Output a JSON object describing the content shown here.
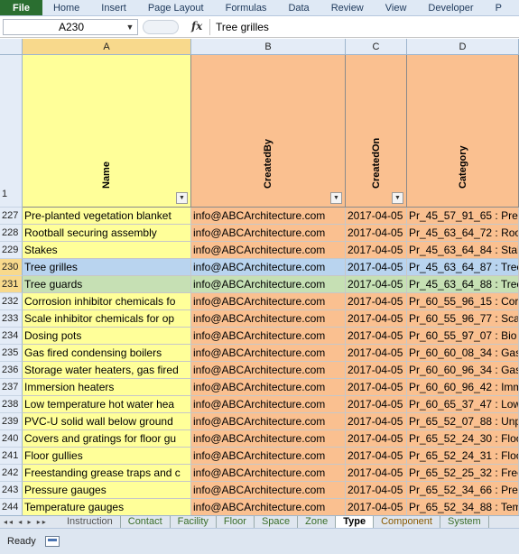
{
  "ribbon": {
    "tabs": [
      "File",
      "Home",
      "Insert",
      "Page Layout",
      "Formulas",
      "Data",
      "Review",
      "View",
      "Developer",
      "P"
    ]
  },
  "formula_bar": {
    "name_box": "A230",
    "fx_label": "fx",
    "value": "Tree grilles"
  },
  "columns": {
    "corner": "",
    "headers": [
      "A",
      "B",
      "C",
      "D"
    ],
    "header_row_number": "1",
    "field_names": [
      "Name",
      "CreatedBy",
      "CreatedOn",
      "Category"
    ]
  },
  "rows": [
    {
      "num": "227",
      "name": "Pre-planted vegetation blanket",
      "created_by": "info@ABCArchitecture.com",
      "created_on": "2017-04-05",
      "category": "Pr_45_57_91_65 : Pre"
    },
    {
      "num": "228",
      "name": "Rootball securing assembly",
      "created_by": "info@ABCArchitecture.com",
      "created_on": "2017-04-05",
      "category": "Pr_45_63_64_72 : Roo"
    },
    {
      "num": "229",
      "name": "Stakes",
      "created_by": "info@ABCArchitecture.com",
      "created_on": "2017-04-05",
      "category": "Pr_45_63_64_84 : Stak"
    },
    {
      "num": "230",
      "name": "Tree grilles",
      "created_by": "info@ABCArchitecture.com",
      "created_on": "2017-04-05",
      "category": "Pr_45_63_64_87 : Tree"
    },
    {
      "num": "231",
      "name": "Tree guards",
      "created_by": "info@ABCArchitecture.com",
      "created_on": "2017-04-05",
      "category": "Pr_45_63_64_88 : Tree"
    },
    {
      "num": "232",
      "name": "Corrosion inhibitor chemicals fo",
      "created_by": "info@ABCArchitecture.com",
      "created_on": "2017-04-05",
      "category": "Pr_60_55_96_15 : Cor"
    },
    {
      "num": "233",
      "name": "Scale inhibitor chemicals for op",
      "created_by": "info@ABCArchitecture.com",
      "created_on": "2017-04-05",
      "category": "Pr_60_55_96_77 : Scal"
    },
    {
      "num": "234",
      "name": "Dosing pots",
      "created_by": "info@ABCArchitecture.com",
      "created_on": "2017-04-05",
      "category": "Pr_60_55_97_07 : Bio"
    },
    {
      "num": "235",
      "name": "Gas fired condensing boilers",
      "created_by": "info@ABCArchitecture.com",
      "created_on": "2017-04-05",
      "category": "Pr_60_60_08_34 : Gas"
    },
    {
      "num": "236",
      "name": "Storage water heaters, gas fired",
      "created_by": "info@ABCArchitecture.com",
      "created_on": "2017-04-05",
      "category": "Pr_60_60_96_34 : Gas"
    },
    {
      "num": "237",
      "name": "Immersion heaters",
      "created_by": "info@ABCArchitecture.com",
      "created_on": "2017-04-05",
      "category": "Pr_60_60_96_42 : Imm"
    },
    {
      "num": "238",
      "name": "Low temperature hot water hea",
      "created_by": "info@ABCArchitecture.com",
      "created_on": "2017-04-05",
      "category": "Pr_60_65_37_47 : Low"
    },
    {
      "num": "239",
      "name": "PVC-U solid wall below ground",
      "created_by": "info@ABCArchitecture.com",
      "created_on": "2017-04-05",
      "category": "Pr_65_52_07_88 : Unp"
    },
    {
      "num": "240",
      "name": "Covers and gratings for floor gu",
      "created_by": "info@ABCArchitecture.com",
      "created_on": "2017-04-05",
      "category": "Pr_65_52_24_30 : Floo"
    },
    {
      "num": "241",
      "name": "Floor gullies",
      "created_by": "info@ABCArchitecture.com",
      "created_on": "2017-04-05",
      "category": "Pr_65_52_24_31 : Floo"
    },
    {
      "num": "242",
      "name": "Freestanding grease traps and c",
      "created_by": "info@ABCArchitecture.com",
      "created_on": "2017-04-05",
      "category": "Pr_65_52_25_32 : Free"
    },
    {
      "num": "243",
      "name": "Pressure gauges",
      "created_by": "info@ABCArchitecture.com",
      "created_on": "2017-04-05",
      "category": "Pr_65_52_34_66 : Pres"
    },
    {
      "num": "244",
      "name": "Temperature gauges",
      "created_by": "info@ABCArchitecture.com",
      "created_on": "2017-04-05",
      "category": "Pr_65_52_34_88 : Tem"
    }
  ],
  "sheet_tabs": {
    "nav": "◂◂ ◂ ▸ ▸▸",
    "tabs": [
      "Instruction",
      "Contact",
      "Facility",
      "Floor",
      "Space",
      "Zone",
      "Type",
      "Component",
      "System"
    ],
    "active": "Type"
  },
  "status_bar": {
    "ready": "Ready"
  },
  "colors": {
    "name_column": "#ffff99",
    "data_columns": "#fac090",
    "selected_row": "#b9d4ef",
    "current_row": "#c6e0b4",
    "file_tab": "#2a6e30"
  }
}
